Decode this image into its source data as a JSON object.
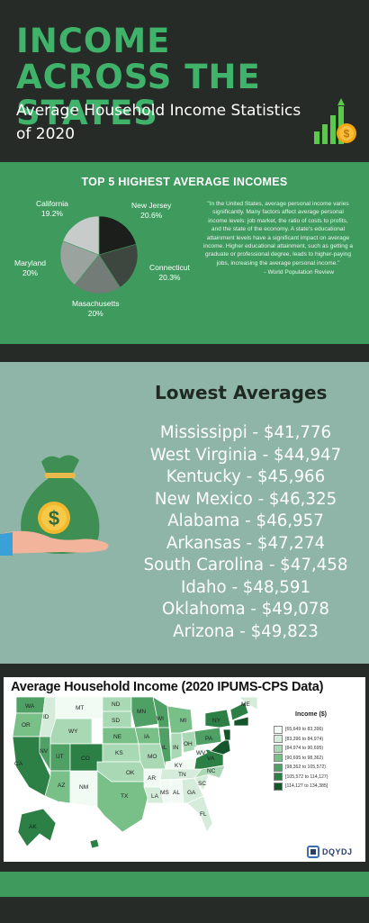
{
  "header": {
    "title": "INCOME ACROSS THE STATES",
    "subtitle": "Average Household Income Statistics of 2020",
    "icon": "growth-chart-dollar-icon"
  },
  "pie_section": {
    "title": "TOP 5 HIGHEST AVERAGE INCOMES",
    "quote": "\"In the United States, average personal income varies significantly. Many factors affect average personal income levels: job market, the ratio of costs to profits, and the state of the economy. A state's educational attainment levels have a significant impact on average income. Higher educational attainment, such as getting a graduate or professional degree, leads to higher-paying jobs, increasing the average personal income.\"",
    "quote_source": "- World Population Review"
  },
  "lowest": {
    "title": "Lowest Averages",
    "items": [
      "Mississippi - $41,776",
      "West Virginia - $44,947",
      "Kentucky - $45,966",
      "New Mexico - $46,325",
      "Alabama - $46,957",
      "Arkansas - $47,274",
      "South Carolina - $47,458",
      "Idaho - $48,591",
      "Oklahoma - $49,078",
      "Arizona - $49,823"
    ],
    "icon": "money-bag-hand-icon"
  },
  "map": {
    "title": "Average Household Income (2020 IPUMS-CPS Data)",
    "legend_title": "Income ($)",
    "legend": [
      {
        "label": "[65,649 to 83,396)",
        "color": "#f2faf4"
      },
      {
        "label": "[83,396 to 84,974)",
        "color": "#d4ecd9"
      },
      {
        "label": "[84,974 to 90,695)",
        "color": "#a9d9b4"
      },
      {
        "label": "[90,695 to 98,362)",
        "color": "#78bf88"
      },
      {
        "label": "[98,362 to 105,572)",
        "color": "#4ea064"
      },
      {
        "label": "[105,572 to 114,127)",
        "color": "#2c7f45"
      },
      {
        "label": "[114,127 to 134,385]",
        "color": "#15552b"
      }
    ],
    "brand": "DQYDJ"
  },
  "chart_data": {
    "type": "pie",
    "title": "TOP 5 HIGHEST AVERAGE INCOMES",
    "categories": [
      "New Jersey",
      "Connecticut",
      "Masachusetts",
      "Maryland",
      "California"
    ],
    "values": [
      20.6,
      20.3,
      20,
      20,
      19.2
    ],
    "value_labels": [
      "20.6%",
      "20.3%",
      "20%",
      "20%",
      "19.2%"
    ],
    "colors": [
      "#1c1e1c",
      "#3d4740",
      "#737c76",
      "#9aa39e",
      "#c7ccca"
    ]
  }
}
